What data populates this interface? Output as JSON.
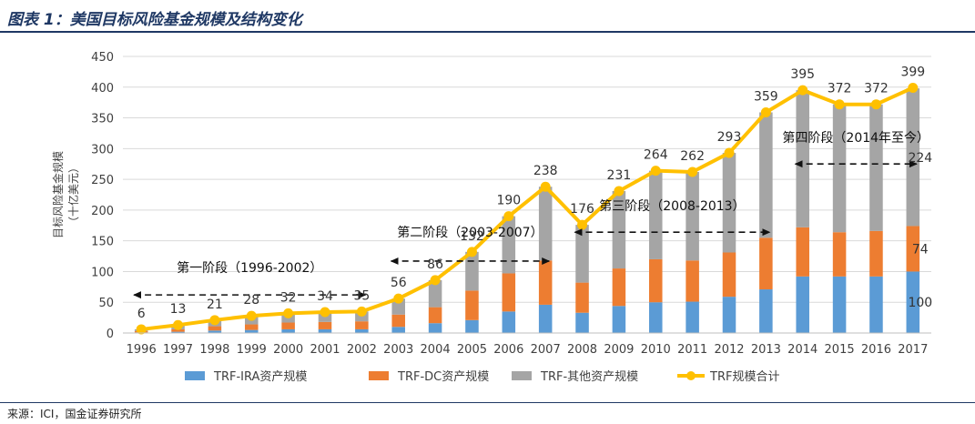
{
  "title": "图表 1：美国目标风险基金规模及结构变化",
  "source": "来源：ICI，国金证券研究所",
  "colors": {
    "ira": "#5b9bd5",
    "dc": "#ed7d31",
    "other": "#a5a5a5",
    "total": "#ffc000",
    "grid": "#d9d9d9",
    "axis_text": "#404040",
    "title": "#1f3864"
  },
  "chart_data": {
    "type": "bar",
    "stacked": true,
    "xlabel": "",
    "ylabel": "目标风险基金规模（十亿美元）",
    "ylim": [
      0,
      450
    ],
    "yticks": [
      0,
      50,
      100,
      150,
      200,
      250,
      300,
      350,
      400,
      450
    ],
    "grid": true,
    "legend_position": "bottom",
    "categories": [
      "1996",
      "1997",
      "1998",
      "1999",
      "2000",
      "2001",
      "2002",
      "2003",
      "2004",
      "2005",
      "2006",
      "2007",
      "2008",
      "2009",
      "2010",
      "2011",
      "2012",
      "2013",
      "2014",
      "2015",
      "2016",
      "2017"
    ],
    "series": [
      {
        "name": "TRF-IRA资产规模",
        "type": "bar",
        "color": "#5b9bd5",
        "values": [
          1,
          2,
          4,
          5,
          6,
          6,
          6,
          10,
          16,
          21,
          35,
          46,
          33,
          44,
          50,
          51,
          59,
          71,
          92,
          92,
          92,
          100
        ]
      },
      {
        "name": "TRF-DC资产规模",
        "type": "bar",
        "color": "#ed7d31",
        "values": [
          2,
          4,
          7,
          9,
          11,
          12,
          13,
          20,
          26,
          48,
          62,
          72,
          49,
          61,
          70,
          67,
          72,
          84,
          80,
          72,
          74,
          74
        ]
      },
      {
        "name": "TRF-其他资产规模",
        "type": "bar",
        "color": "#a5a5a5",
        "values": [
          3,
          7,
          10,
          14,
          15,
          16,
          16,
          26,
          44,
          63,
          93,
          120,
          94,
          126,
          144,
          144,
          162,
          204,
          223,
          208,
          206,
          224
        ]
      },
      {
        "name": "TRF规模合计",
        "type": "line",
        "color": "#ffc000",
        "values": [
          6,
          13,
          21,
          28,
          32,
          34,
          35,
          56,
          86,
          132,
          190,
          238,
          176,
          231,
          264,
          262,
          293,
          359,
          395,
          372,
          372,
          399
        ]
      }
    ],
    "segment_labels": [
      {
        "category": "2017",
        "series": "TRF-IRA资产规模",
        "text": "100"
      },
      {
        "category": "2017",
        "series": "TRF-DC资产规模",
        "text": "74"
      },
      {
        "category": "2017",
        "series": "TRF-其他资产规模",
        "text": "224"
      }
    ],
    "annotations": [
      {
        "text": "第一阶段（1996-2002）",
        "from": "1996",
        "to": "2002"
      },
      {
        "text": "第二阶段（2003-2007）",
        "from": "2003",
        "to": "2007"
      },
      {
        "text": "第三阶段（2008-2013）",
        "from": "2008",
        "to": "2013"
      },
      {
        "text": "第四阶段（2014年至今）",
        "from": "2014",
        "to": "2017"
      }
    ]
  }
}
